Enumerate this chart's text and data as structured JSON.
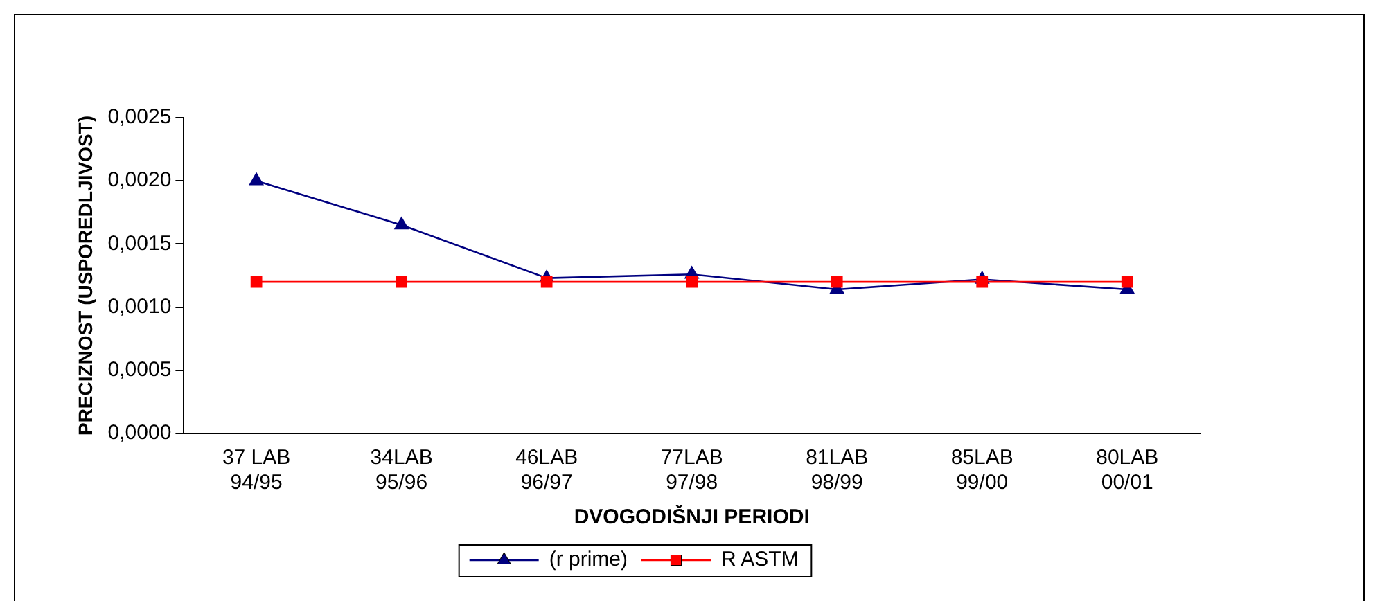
{
  "chart_data": {
    "type": "line",
    "xlabel": "DVOGODIŠNJI PERIODI",
    "ylabel": "PRECIZNOST (USPOREDLJIVOST)",
    "categories": [
      "37 LAB\n94/95",
      "34LAB\n95/96",
      "46LAB\n96/97",
      "77LAB\n97/98",
      "81LAB\n98/99",
      "85LAB\n99/00",
      "80LAB\n00/01"
    ],
    "series": [
      {
        "name": "(r prime)",
        "color": "#000080",
        "marker": "triangle",
        "values": [
          0.002,
          0.00165,
          0.00123,
          0.00126,
          0.00114,
          0.00122,
          0.00114
        ]
      },
      {
        "name": "R ASTM",
        "color": "#ff0000",
        "marker": "square",
        "values": [
          0.0012,
          0.0012,
          0.0012,
          0.0012,
          0.0012,
          0.0012,
          0.0012
        ]
      }
    ],
    "ylim": [
      0,
      0.0025
    ],
    "yticks": [
      {
        "value": 0,
        "label": "0,0000"
      },
      {
        "value": 0.0005,
        "label": "0,0005"
      },
      {
        "value": 0.001,
        "label": "0,0010"
      },
      {
        "value": 0.0015,
        "label": "0,0015"
      },
      {
        "value": 0.002,
        "label": "0,0020"
      },
      {
        "value": 0.0025,
        "label": "0,0025"
      }
    ],
    "grid": false,
    "legend": "bottom",
    "line_style": "solid"
  }
}
